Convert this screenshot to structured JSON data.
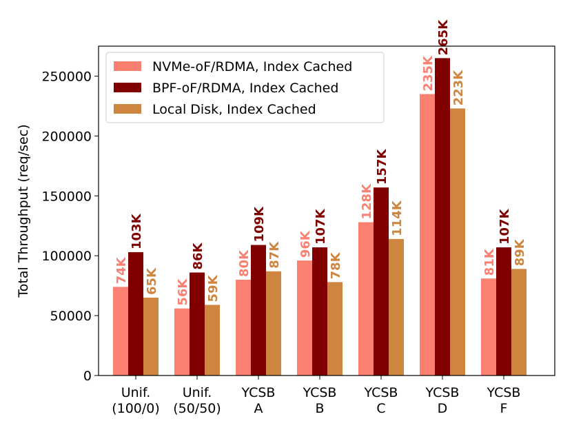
{
  "chart_data": {
    "type": "bar",
    "title": "",
    "xlabel": "",
    "ylabel": "Total Throughput (req/sec)",
    "ylim": [
      0,
      275000
    ],
    "yticks": [
      0,
      50000,
      100000,
      150000,
      200000,
      250000
    ],
    "ytick_labels": [
      "0",
      "50000",
      "100000",
      "150000",
      "200000",
      "250000"
    ],
    "categories": [
      [
        "Unif.",
        "(100/0)"
      ],
      [
        "Unif.",
        "(50/50)"
      ],
      [
        "YCSB",
        "A"
      ],
      [
        "YCSB",
        "B"
      ],
      [
        "YCSB",
        "C"
      ],
      [
        "YCSB",
        "D"
      ],
      [
        "YCSB",
        "F"
      ]
    ],
    "series": [
      {
        "name": "NVMe-oF/RDMA, Index Cached",
        "color": "#fa8072",
        "values": [
          74000,
          56000,
          80000,
          96000,
          128000,
          235000,
          81000
        ],
        "labels": [
          "74K",
          "56K",
          "80K",
          "96K",
          "128K",
          "235K",
          "81K"
        ]
      },
      {
        "name": "BPF-oF/RDMA, Index Cached",
        "color": "#800000",
        "values": [
          103000,
          86000,
          109000,
          107000,
          157000,
          265000,
          107000
        ],
        "labels": [
          "103K",
          "86K",
          "109K",
          "107K",
          "157K",
          "265K",
          "107K"
        ]
      },
      {
        "name": "Local Disk, Index Cached",
        "color": "#cd853f",
        "values": [
          65000,
          59000,
          87000,
          78000,
          114000,
          223000,
          89000
        ],
        "labels": [
          "65K",
          "59K",
          "87K",
          "78K",
          "114K",
          "223K",
          "89K"
        ]
      }
    ],
    "legend_position": "top-left",
    "grid": false
  }
}
